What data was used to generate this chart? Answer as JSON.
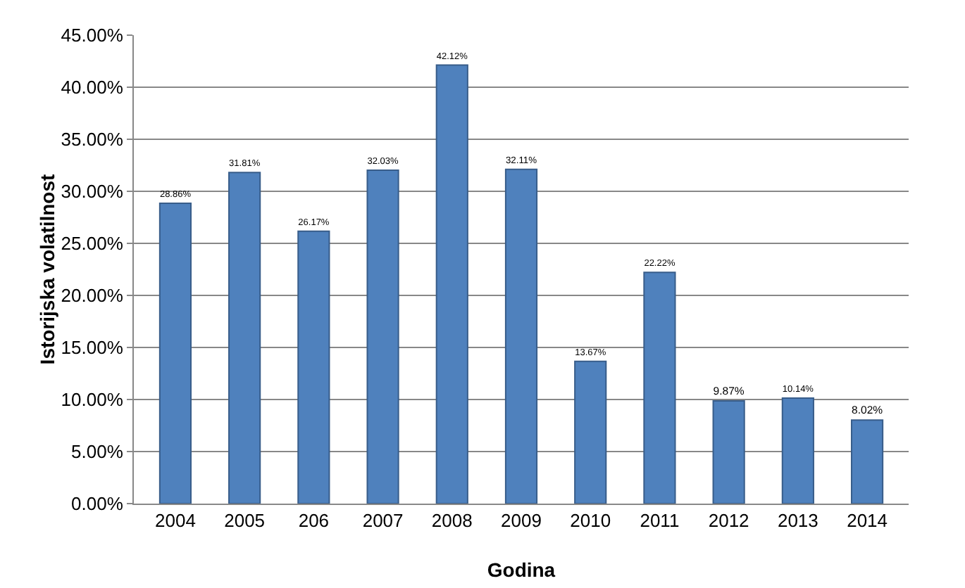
{
  "chart_data": {
    "type": "bar",
    "xlabel": "Godina",
    "ylabel": "Istorijska volatilnost",
    "categories": [
      "2004",
      "2005",
      "206",
      "2007",
      "2008",
      "2009",
      "2010",
      "2011",
      "2012",
      "2013",
      "2014"
    ],
    "values": [
      28.86,
      31.81,
      26.17,
      32.03,
      42.12,
      32.11,
      13.67,
      22.22,
      9.87,
      10.14,
      8.02
    ],
    "value_labels": [
      "28.86%",
      "31.81%",
      "26.17%",
      "32.03%",
      "42.12%",
      "32.11%",
      "13.67%",
      "22.22%",
      "9.87%",
      "10.14%",
      "8.02%"
    ],
    "color": "#4f81bd",
    "ylim": [
      0,
      45
    ],
    "yticks": [
      {
        "value": 0,
        "label": "0.00%"
      },
      {
        "value": 5,
        "label": "5.00%"
      },
      {
        "value": 10,
        "label": "10.00%"
      },
      {
        "value": 15,
        "label": "15.00%"
      },
      {
        "value": 20,
        "label": "20.00%"
      },
      {
        "value": 25,
        "label": "25.00%"
      },
      {
        "value": 30,
        "label": "30.00%"
      },
      {
        "value": 35,
        "label": "35.00%"
      },
      {
        "value": 40,
        "label": "40.00%"
      },
      {
        "value": 45,
        "label": "45.00%"
      }
    ],
    "grid": true
  }
}
